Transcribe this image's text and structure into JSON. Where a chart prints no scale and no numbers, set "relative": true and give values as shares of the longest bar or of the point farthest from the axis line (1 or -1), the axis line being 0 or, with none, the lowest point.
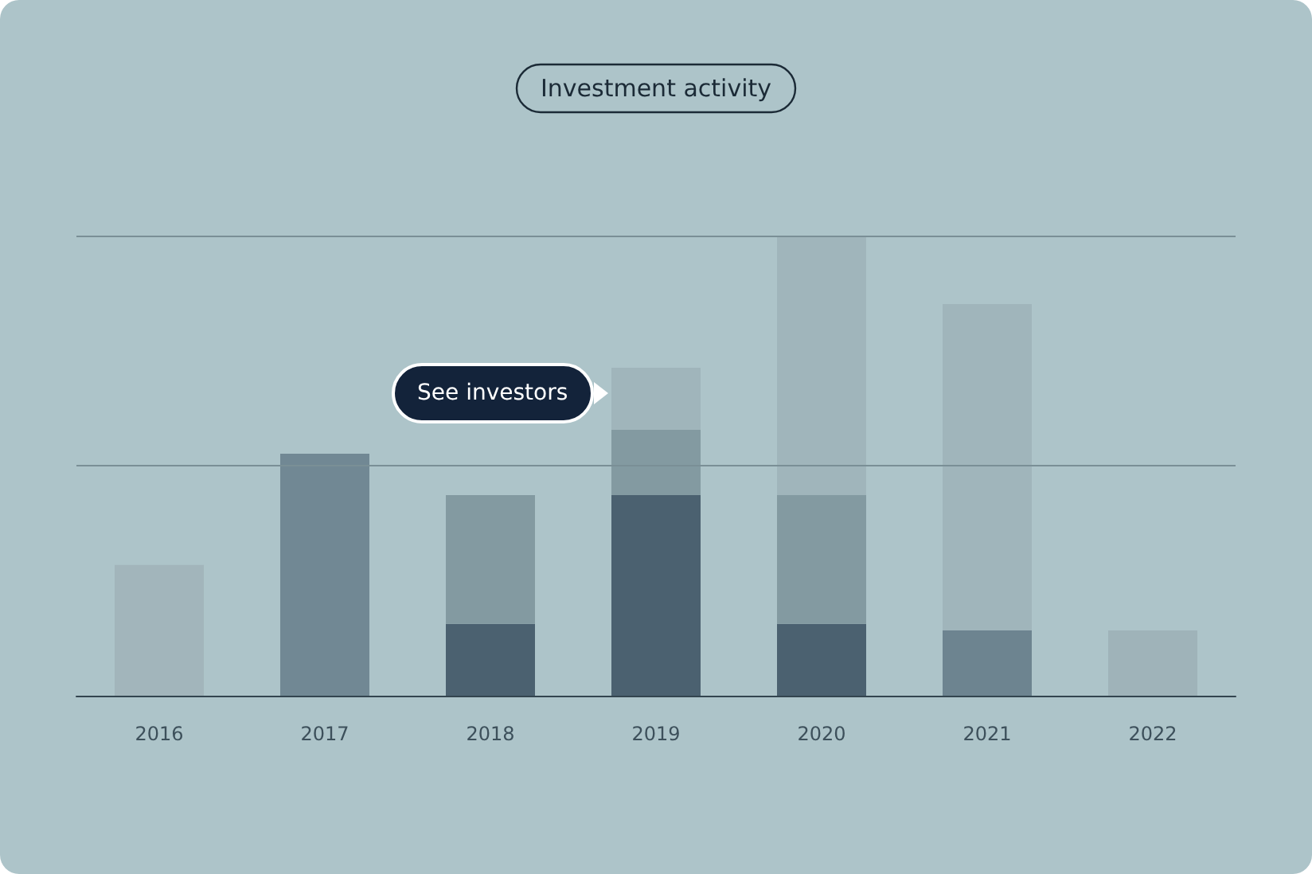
{
  "chart_data": {
    "type": "bar",
    "title": "Investment activity",
    "relative": true,
    "stacked": true,
    "categories": [
      "2016",
      "2017",
      "2018",
      "2019",
      "2020",
      "2021",
      "2022"
    ],
    "series": [
      {
        "color": "#4b6170",
        "colors": [
          "#a2b5bb",
          "#718894",
          "#4b6170",
          "#4b6170",
          "#4b6170",
          "#6d8490",
          "#9fb3b9"
        ],
        "values": [
          0.284,
          0.526,
          0.156,
          0.436,
          0.156,
          0.142,
          0.142
        ]
      },
      {
        "color": "#839aa1",
        "values": [
          null,
          null,
          0.28,
          0.142,
          0.28,
          null,
          null
        ]
      },
      {
        "color": "#a0b5bb",
        "values": [
          null,
          null,
          null,
          0.135,
          0.564,
          0.709,
          null
        ]
      }
    ],
    "ref_lines": [
      {
        "axis": "y",
        "value": 0.5,
        "color": "#7a8f96"
      },
      {
        "axis": "y",
        "value": 1,
        "color": "#7a8f96"
      }
    ],
    "annotations": [
      "See investors"
    ]
  }
}
